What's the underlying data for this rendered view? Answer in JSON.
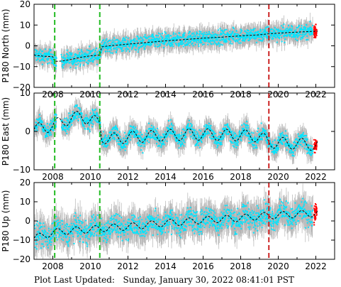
{
  "footer": {
    "label": "Plot Last Updated:",
    "value": "Sunday, January 30, 2022 08:41:01 PST"
  },
  "colors": {
    "scatter": "#00e5ff",
    "errorbars": "#b4b4b4",
    "model": "#000000",
    "recent": "#ff0000",
    "equipment_change": "#22bb22",
    "event": "#cc2222",
    "frame": "#000000"
  },
  "chart_data": [
    {
      "type": "scatter",
      "ylabel": "P180 North (mm)",
      "xlim": [
        2007.0,
        2023.0
      ],
      "ylim": [
        -20,
        20
      ],
      "yticks": [
        -20,
        -10,
        0,
        10,
        20
      ],
      "xticks": [
        2008,
        2010,
        2012,
        2014,
        2016,
        2018,
        2020,
        2022
      ],
      "xtick_labels": [
        "2008",
        "2010",
        "2012",
        "2014",
        "2016",
        "2018",
        "2020",
        "2022"
      ],
      "ytick_labels": [
        "−20",
        "−10",
        "0",
        "10",
        "20"
      ],
      "vlines": [
        {
          "x": 2008.1,
          "color": "green",
          "style": "dashed"
        },
        {
          "x": 2010.5,
          "color": "green",
          "style": "dashed"
        },
        {
          "x": 2019.5,
          "color": "red",
          "style": "dashed"
        }
      ],
      "series": [
        {
          "kind": "model",
          "x": [
            2007.0,
            2007.5,
            2008.0,
            2008.1,
            2008.5,
            2009.0,
            2009.5,
            2010.0,
            2010.5,
            2010.6,
            2011.0,
            2012.0,
            2013.0,
            2014.0,
            2015.0,
            2016.0,
            2017.0,
            2018.0,
            2019.0,
            2019.5,
            2020.0,
            2021.0,
            2022.0
          ],
          "y": [
            -4.5,
            -5.0,
            -5.2,
            -7.5,
            -7.3,
            -6.5,
            -5.5,
            -4.8,
            -4.5,
            -0.5,
            0.0,
            0.8,
            1.6,
            2.4,
            3.0,
            3.7,
            4.2,
            4.8,
            5.3,
            5.8,
            6.1,
            6.6,
            7.0
          ],
          "noise": 3.0
        }
      ]
    },
    {
      "type": "scatter",
      "ylabel": "P180 East (mm)",
      "xlim": [
        2007.0,
        2023.0
      ],
      "ylim": [
        -10,
        10
      ],
      "yticks": [
        -10,
        0,
        10
      ],
      "xticks": [
        2008,
        2010,
        2012,
        2014,
        2016,
        2018,
        2020,
        2022
      ],
      "xtick_labels": [
        "2008",
        "2010",
        "2012",
        "2014",
        "2016",
        "2018",
        "2020",
        "2022"
      ],
      "ytick_labels": [
        "−10",
        "0",
        "10"
      ],
      "vlines": [
        {
          "x": 2008.1,
          "color": "green",
          "style": "dashed"
        },
        {
          "x": 2010.5,
          "color": "green",
          "style": "dashed"
        },
        {
          "x": 2019.5,
          "color": "red",
          "style": "dashed"
        }
      ],
      "series": [
        {
          "kind": "model",
          "x": [
            2007.0,
            2007.5,
            2008.0,
            2008.1,
            2008.5,
            2009.0,
            2009.5,
            2010.0,
            2010.5,
            2010.6,
            2011.0,
            2012.0,
            2013.0,
            2014.0,
            2015.0,
            2016.0,
            2017.0,
            2018.0,
            2019.0,
            2019.5,
            2020.0,
            2021.0,
            2022.0
          ],
          "y": [
            0.5,
            1.0,
            1.5,
            1.8,
            2.5,
            3.5,
            4.0,
            3.0,
            2.2,
            -1.5,
            -2.0,
            -1.5,
            -1.3,
            -1.0,
            -0.8,
            -0.8,
            -0.9,
            -1.0,
            -1.3,
            -2.8,
            -3.0,
            -3.2,
            -3.5
          ],
          "noise": 1.8,
          "seasonal": 1.5
        }
      ]
    },
    {
      "type": "scatter",
      "ylabel": "P180 Up (mm)",
      "xlim": [
        2007.0,
        2023.0
      ],
      "ylim": [
        -20,
        20
      ],
      "yticks": [
        -20,
        -10,
        0,
        10,
        20
      ],
      "xticks": [
        2008,
        2010,
        2012,
        2014,
        2016,
        2018,
        2020,
        2022
      ],
      "xtick_labels": [
        "2008",
        "2010",
        "2012",
        "2014",
        "2016",
        "2018",
        "2020",
        "2022"
      ],
      "ytick_labels": [
        "−20",
        "−10",
        "0",
        "10",
        "20"
      ],
      "vlines": [
        {
          "x": 2008.1,
          "color": "green",
          "style": "dashed"
        },
        {
          "x": 2010.5,
          "color": "green",
          "style": "dashed"
        },
        {
          "x": 2019.5,
          "color": "red",
          "style": "dashed"
        }
      ],
      "series": [
        {
          "kind": "model",
          "x": [
            2007.0,
            2008.0,
            2009.0,
            2010.0,
            2011.0,
            2012.0,
            2013.0,
            2014.0,
            2015.0,
            2016.0,
            2017.0,
            2018.0,
            2019.0,
            2020.0,
            2021.0,
            2022.0
          ],
          "y": [
            -9.0,
            -6.0,
            -5.0,
            -4.5,
            -3.5,
            -3.0,
            -2.0,
            -1.0,
            -0.5,
            0.5,
            1.0,
            1.5,
            2.5,
            3.0,
            3.5,
            4.0
          ],
          "noise": 5.0,
          "seasonal": 1.8
        }
      ]
    }
  ]
}
